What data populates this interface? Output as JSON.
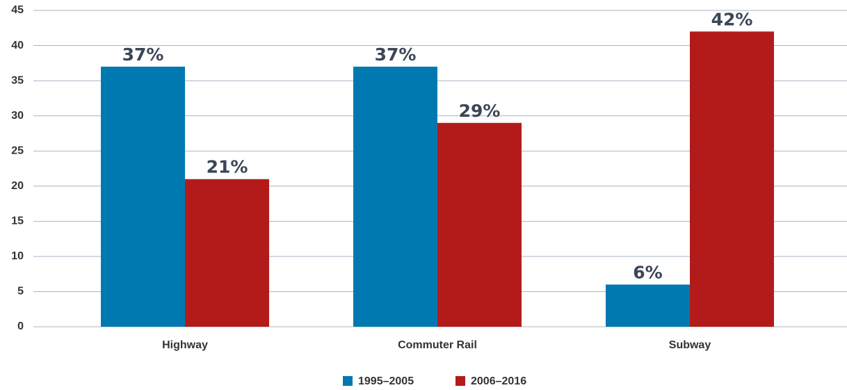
{
  "chart_data": {
    "type": "bar",
    "categories": [
      "Highway",
      "Commuter Rail",
      "Subway"
    ],
    "series": [
      {
        "name": "1995–2005",
        "color": "#0079b0",
        "values": [
          37,
          37,
          6
        ],
        "value_labels": [
          "37%",
          "37%",
          "6%"
        ]
      },
      {
        "name": "2006–2016",
        "color": "#b31b1b",
        "values": [
          21,
          29,
          42
        ],
        "value_labels": [
          "21%",
          "29%",
          "42%"
        ]
      }
    ],
    "ylim": [
      0,
      45
    ],
    "yticks": [
      0,
      5,
      10,
      15,
      20,
      25,
      30,
      35,
      40,
      45
    ],
    "grid": true,
    "legend": "bottom"
  }
}
